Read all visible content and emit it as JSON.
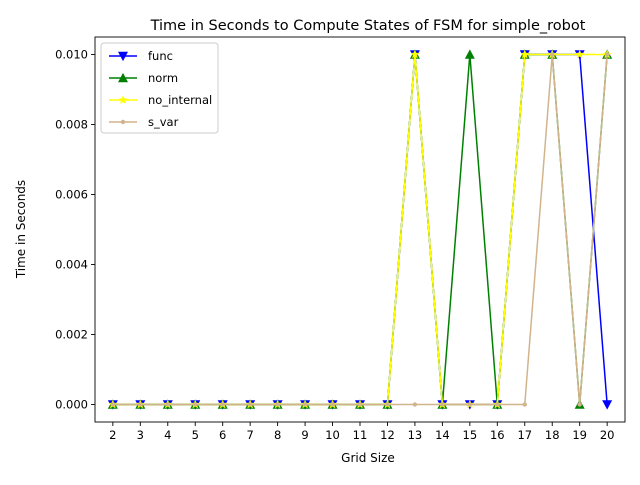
{
  "chart_data": {
    "type": "line",
    "title": "Time in Seconds to Compute States of FSM for simple_robot",
    "xlabel": "Grid Size",
    "ylabel": "Time in Seconds",
    "categories": [
      "2",
      "3",
      "4",
      "5",
      "6",
      "7",
      "8",
      "9",
      "10",
      "11",
      "12",
      "13",
      "14",
      "15",
      "16",
      "17",
      "18",
      "19",
      "20"
    ],
    "x": [
      2,
      3,
      4,
      5,
      6,
      7,
      8,
      9,
      10,
      11,
      12,
      13,
      14,
      15,
      16,
      17,
      18,
      19,
      20
    ],
    "yticks": [
      "0.000",
      "0.002",
      "0.004",
      "0.006",
      "0.008",
      "0.010"
    ],
    "ylim": [
      -0.0005,
      0.0105
    ],
    "xlim": [
      1.35,
      20.65
    ],
    "grid": false,
    "legend_position": "top-left",
    "series": [
      {
        "name": "func",
        "color": "#0000ff",
        "marker": "triangle-down",
        "values": [
          0,
          0,
          0,
          0,
          0,
          0,
          0,
          0,
          0,
          0,
          0,
          0.01,
          0,
          0,
          0,
          0.01,
          0.01,
          0.01,
          0
        ]
      },
      {
        "name": "norm",
        "color": "#008000",
        "marker": "triangle-up",
        "values": [
          0,
          0,
          0,
          0,
          0,
          0,
          0,
          0,
          0,
          0,
          0,
          0.01,
          0,
          0.01,
          0,
          0.01,
          0.01,
          0,
          0.01
        ]
      },
      {
        "name": "no_internal",
        "color": "#ffff00",
        "marker": "star",
        "values": [
          0,
          0,
          0,
          0,
          0,
          0,
          0,
          0,
          0,
          0,
          0,
          0.01,
          0,
          0,
          0,
          0.01,
          0.01,
          0.01,
          0.01
        ]
      },
      {
        "name": "s_var",
        "color": "#d2b48c",
        "marker": "point",
        "values": [
          0,
          0,
          0,
          0,
          0,
          0,
          0,
          0,
          0,
          0,
          0,
          0,
          0,
          0,
          0,
          0,
          0.01,
          0,
          0.01
        ]
      }
    ]
  }
}
